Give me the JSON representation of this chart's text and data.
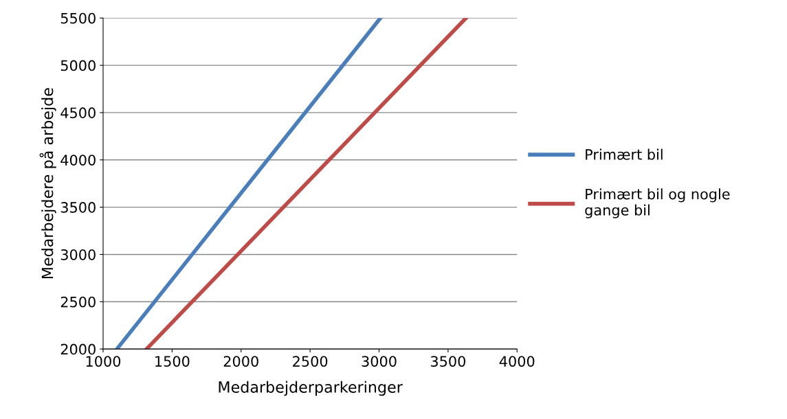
{
  "chart_data": {
    "type": "line",
    "xlabel": "Medarbejderparkeringer",
    "ylabel": "Medarbejdere på arbejde",
    "series": [
      {
        "name": "Primært bil",
        "color": "#4a7ebb",
        "x": [
          1100,
          3010
        ],
        "values": [
          2000,
          5500
        ]
      },
      {
        "name": "Primært bil og nogle gange bil",
        "color": "#be4b48",
        "x": [
          1315,
          3630
        ],
        "values": [
          2000,
          5500
        ]
      }
    ],
    "xlim": [
      1000,
      4000
    ],
    "xticks": [
      1000,
      1500,
      2000,
      2500,
      3000,
      3500,
      4000
    ],
    "ylim": [
      2000,
      5500
    ],
    "yticks": [
      2000,
      2500,
      3000,
      3500,
      4000,
      4500,
      5000,
      5500
    ],
    "grid": "y",
    "legend": "right",
    "marker": "none",
    "line_style": "solid"
  }
}
